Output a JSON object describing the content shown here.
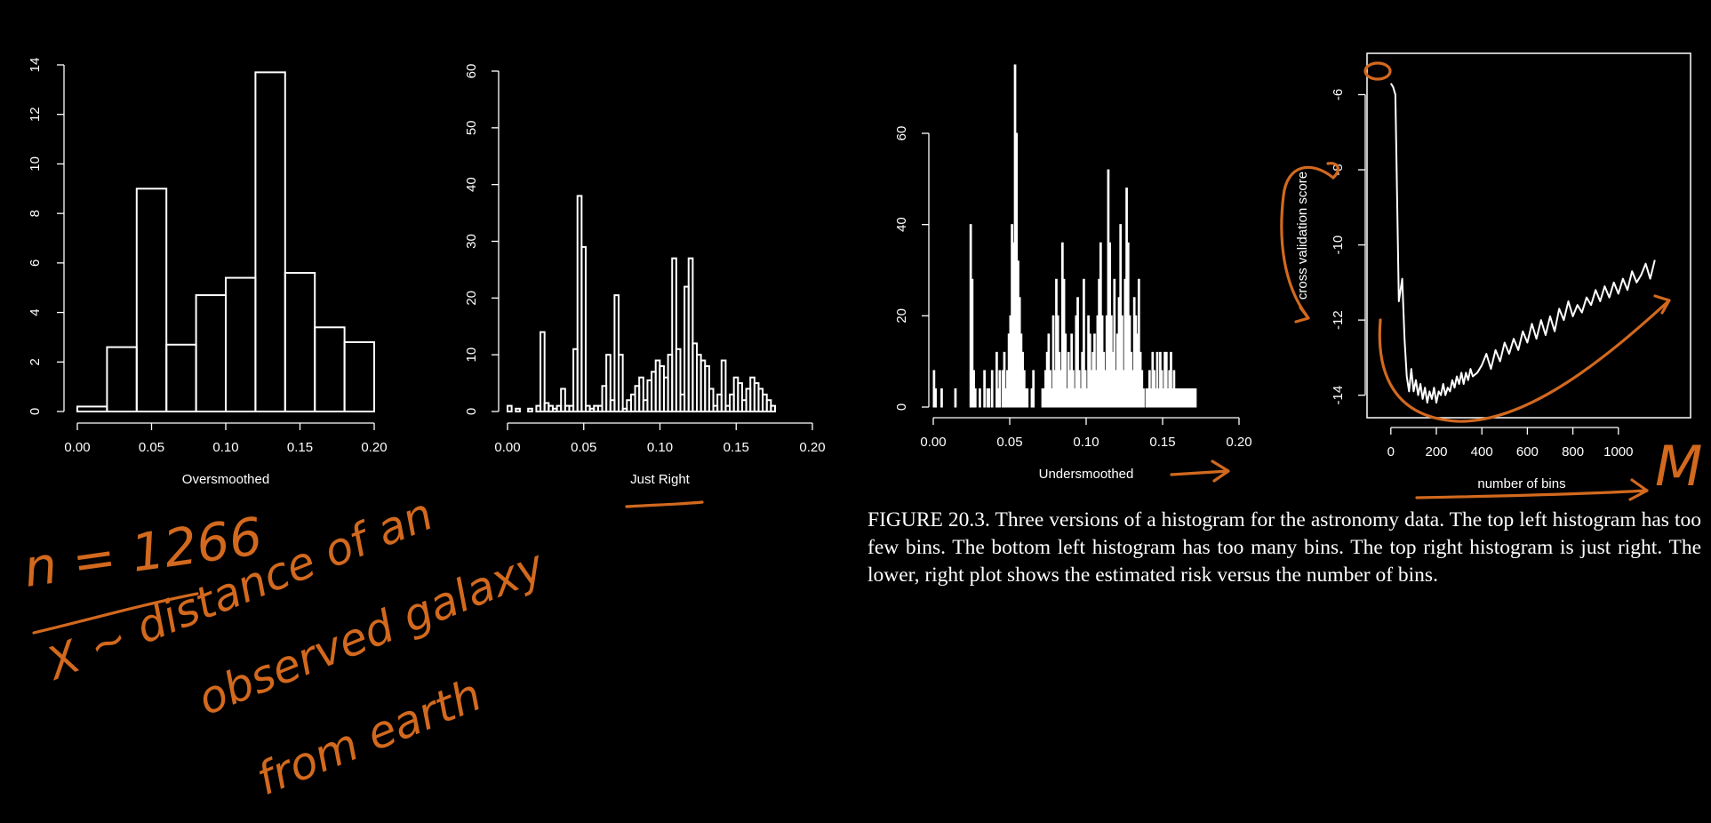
{
  "chart_data": [
    {
      "type": "bar",
      "xlabel": "Oversmoothed",
      "ylabel": "",
      "xlim": [
        0,
        0.2
      ],
      "ylim": [
        0,
        14
      ],
      "x_ticks": [
        "0.00",
        "0.05",
        "0.10",
        "0.15",
        "0.20"
      ],
      "y_ticks": [
        "0",
        "2",
        "4",
        "6",
        "8",
        "10",
        "12",
        "14"
      ],
      "bin_edges": [
        0.0,
        0.02,
        0.04,
        0.06,
        0.08,
        0.1,
        0.12,
        0.14,
        0.16,
        0.18,
        0.2
      ],
      "values": [
        0.2,
        2.6,
        9.0,
        2.7,
        4.7,
        5.4,
        13.7,
        5.6,
        3.4,
        2.8
      ]
    },
    {
      "type": "bar",
      "xlabel": "Just Right",
      "ylabel": "",
      "xlim": [
        0,
        0.2
      ],
      "ylim": [
        0,
        60
      ],
      "x_ticks": [
        "0.00",
        "0.05",
        "0.10",
        "0.15",
        "0.20"
      ],
      "y_ticks": [
        "0",
        "10",
        "20",
        "30",
        "40",
        "50",
        "60"
      ],
      "bin_width": 0.0027,
      "values": [
        1,
        0,
        0.5,
        0,
        0,
        0.5,
        0,
        1,
        14,
        1.5,
        1,
        0.5,
        1,
        4,
        1,
        1,
        11,
        38,
        29,
        1,
        0.5,
        1,
        1,
        4.5,
        10,
        2,
        20.5,
        10,
        0.5,
        2,
        3,
        4.5,
        6,
        2,
        5.5,
        7,
        9,
        8,
        6,
        10,
        27,
        11,
        3,
        22,
        27,
        12,
        10,
        9,
        8,
        4,
        1,
        3,
        9,
        1,
        3,
        6,
        5,
        2,
        4,
        6,
        5,
        4,
        3,
        2,
        1
      ]
    },
    {
      "type": "bar",
      "xlabel": "Undersmoothed",
      "ylabel": "",
      "xlim": [
        0,
        0.2
      ],
      "ylim": [
        0,
        75
      ],
      "x_ticks": [
        "0.00",
        "0.05",
        "0.10",
        "0.15",
        "0.20"
      ],
      "y_ticks": [
        "0",
        "20",
        "40",
        "60"
      ],
      "bin_width": 0.001,
      "values": [
        8,
        4,
        0,
        0,
        0,
        4,
        0,
        0,
        0,
        0,
        0,
        0,
        0,
        0,
        4,
        0,
        0,
        0,
        0,
        0,
        0,
        0,
        0,
        0,
        40,
        28,
        8,
        4,
        0,
        0,
        4,
        0,
        0,
        8,
        0,
        4,
        4,
        0,
        8,
        0,
        0,
        12,
        4,
        8,
        0,
        8,
        12,
        4,
        8,
        16,
        20,
        40,
        36,
        75,
        60,
        32,
        24,
        16,
        12,
        8,
        4,
        4,
        0,
        0,
        4,
        8,
        0,
        0,
        0,
        0,
        0,
        4,
        4,
        8,
        12,
        16,
        8,
        4,
        20,
        8,
        28,
        20,
        12,
        8,
        36,
        28,
        16,
        4,
        12,
        8,
        16,
        8,
        4,
        20,
        24,
        8,
        4,
        12,
        28,
        8,
        4,
        20,
        16,
        8,
        12,
        16,
        8,
        20,
        28,
        36,
        20,
        12,
        8,
        20,
        52,
        36,
        20,
        12,
        28,
        8,
        16,
        24,
        40,
        20,
        8,
        28,
        48,
        36,
        20,
        12,
        8,
        24,
        20,
        16,
        28,
        12,
        8,
        4,
        0,
        4,
        4,
        8,
        4,
        12,
        8,
        4,
        12,
        4,
        12,
        8,
        4,
        12,
        12,
        4,
        8,
        12,
        4,
        8,
        4,
        4,
        4,
        4,
        4,
        4,
        4,
        4,
        4,
        4,
        4,
        4,
        4,
        4
      ]
    },
    {
      "type": "line",
      "xlabel": "number of bins",
      "ylabel": "cross validation score",
      "xlim": [
        -50,
        1200
      ],
      "ylim": [
        -14.6,
        -4.9
      ],
      "x_ticks": [
        "0",
        "200",
        "400",
        "600",
        "800",
        "1000"
      ],
      "y_ticks": [
        "-6",
        "-8",
        "-10",
        "-12",
        "-14"
      ],
      "series": [
        {
          "x": [
            0,
            10,
            20,
            35,
            50,
            60,
            70,
            80,
            90,
            100,
            110,
            120,
            130,
            140,
            150,
            160,
            170,
            180,
            190,
            200,
            210,
            220,
            230,
            240,
            250,
            260,
            270,
            280,
            290,
            300,
            310,
            320,
            330,
            340,
            350,
            360,
            380,
            400,
            420,
            440,
            460,
            480,
            500,
            520,
            540,
            560,
            580,
            600,
            620,
            640,
            660,
            680,
            700,
            720,
            740,
            760,
            780,
            800,
            820,
            840,
            860,
            880,
            900,
            920,
            940,
            960,
            980,
            1000,
            1020,
            1040,
            1060,
            1080,
            1100,
            1120,
            1140,
            1160
          ],
          "y": [
            -5.7,
            -5.8,
            -6.0,
            -11.5,
            -10.9,
            -12.5,
            -13.5,
            -13.9,
            -13.3,
            -13.9,
            -13.6,
            -14.0,
            -13.7,
            -14.1,
            -13.8,
            -14.2,
            -13.9,
            -14.1,
            -13.8,
            -14.2,
            -13.9,
            -14.0,
            -13.7,
            -14.0,
            -13.8,
            -13.9,
            -13.6,
            -13.8,
            -13.5,
            -13.7,
            -13.4,
            -13.7,
            -13.4,
            -13.6,
            -13.3,
            -13.5,
            -13.4,
            -13.2,
            -12.9,
            -13.3,
            -12.8,
            -13.1,
            -12.6,
            -12.9,
            -12.5,
            -12.8,
            -12.3,
            -12.6,
            -12.1,
            -12.5,
            -12.0,
            -12.4,
            -11.9,
            -12.3,
            -11.7,
            -12.0,
            -11.5,
            -11.9,
            -11.6,
            -11.8,
            -11.4,
            -11.6,
            -11.2,
            -11.5,
            -11.1,
            -11.4,
            -11.0,
            -11.3,
            -10.9,
            -11.2,
            -10.7,
            -11.0,
            -10.8,
            -10.5,
            -10.9,
            -10.4
          ]
        }
      ]
    }
  ],
  "caption": "FIGURE 20.3. Three versions of a histogram for the astronomy data. The top left histogram has too few bins. The bottom left histogram has too many bins. The top right histogram is just right. The lower, right plot shows the estimated risk versus the number of bins.",
  "annotations": {
    "n_label": "n = 1266",
    "x_line1": "X ~ distance of an",
    "x_line2": "observed galaxy",
    "x_line3": "from earth",
    "m_label": "M"
  },
  "colors": {
    "background": "#000000",
    "foreground": "#ffffff",
    "annotation_ink": "#d2691e"
  }
}
